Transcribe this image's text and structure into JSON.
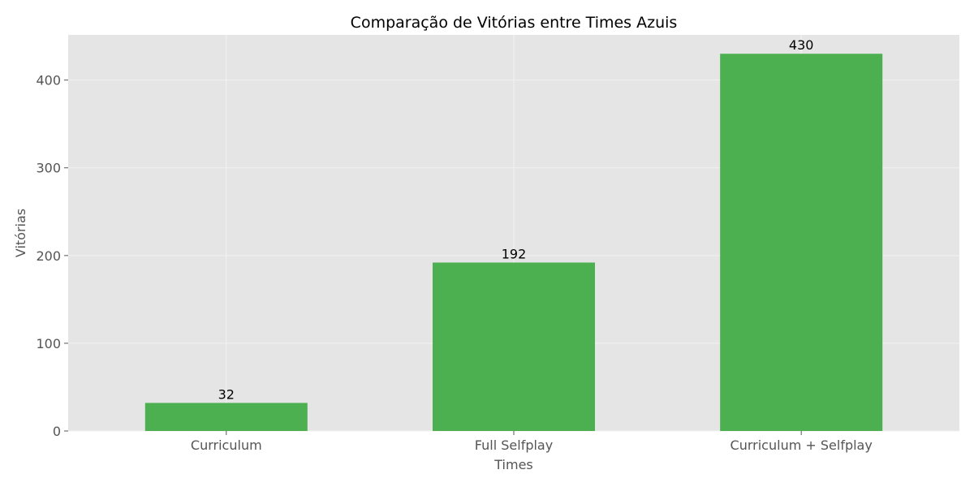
{
  "chart_data": {
    "type": "bar",
    "title": "Comparação de Vitórias entre Times Azuis",
    "xlabel": "Times",
    "ylabel": "Vitórias",
    "categories": [
      "Curriculum",
      "Full Selfplay",
      "Curriculum + Selfplay"
    ],
    "values": [
      32,
      192,
      430
    ],
    "data_labels": [
      "32",
      "192",
      "430"
    ],
    "yticks": [
      0,
      100,
      200,
      300,
      400
    ],
    "ytick_labels": [
      "0",
      "100",
      "200",
      "300",
      "400"
    ],
    "ylim": [
      0,
      451.5
    ],
    "grid": true,
    "legend": "none",
    "colors": {
      "bar": "#4caf50",
      "plot_background": "#e5e5e5",
      "grid": "#f2f2f2",
      "tick": "#555555"
    }
  }
}
